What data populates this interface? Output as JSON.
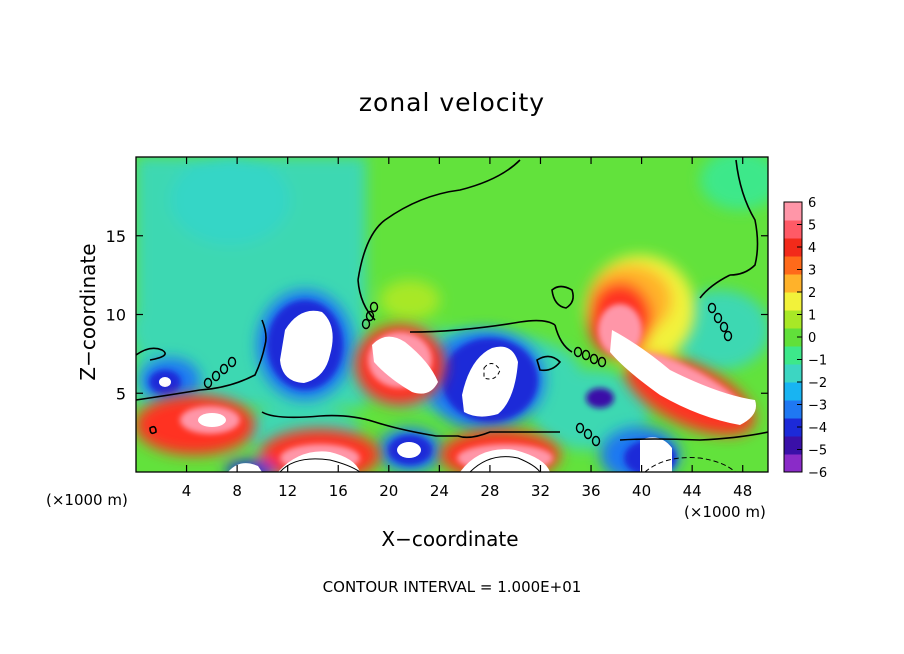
{
  "chart_data": {
    "type": "heatmap",
    "title": "zonal velocity",
    "xlabel": "X−coordinate",
    "ylabel": "Z−coordinate",
    "x_unit_label": "(×1000 m)",
    "x_ticks": [
      4,
      8,
      12,
      16,
      20,
      24,
      28,
      32,
      36,
      40,
      44,
      48
    ],
    "y_ticks": [
      5,
      10,
      15
    ],
    "xlim": [
      0,
      50
    ],
    "ylim": [
      0,
      20
    ],
    "colorbar": {
      "ticks": [
        6,
        5,
        4,
        3,
        2,
        1,
        0,
        -1,
        -2,
        -3,
        -4,
        -5,
        -6
      ],
      "labels": [
        "6",
        "5",
        "4",
        "3",
        "2",
        "1",
        "0",
        "−1",
        "−2",
        "−3",
        "−4",
        "−5",
        "−6"
      ],
      "range": [
        -6,
        6
      ],
      "colors": [
        "#8a2bc8",
        "#3a10a8",
        "#1c2ad8",
        "#1f78f2",
        "#18b4f2",
        "#3cd6c2",
        "#3de88a",
        "#61e03a",
        "#a8e826",
        "#f2f23a",
        "#ffb22a",
        "#ff6a1a",
        "#f22a1a",
        "#ff5a66",
        "#ff96a8"
      ]
    },
    "features": [
      {
        "kind": "positive",
        "x": 8,
        "y": 3.5,
        "peak": "6+"
      },
      {
        "kind": "positive",
        "x": 14,
        "y": 1.5,
        "peak": "6+"
      },
      {
        "kind": "negative",
        "x": 14,
        "y": 8,
        "peak": "-6-"
      },
      {
        "kind": "positive",
        "x": 20,
        "y": 7,
        "peak": "6+"
      },
      {
        "kind": "negative",
        "x": 22,
        "y": 2,
        "peak": "-6-"
      },
      {
        "kind": "negative",
        "x": 29,
        "y": 6.5,
        "peak": "-6-"
      },
      {
        "kind": "positive",
        "x": 28,
        "y": 1.5,
        "peak": "6+"
      },
      {
        "kind": "positive",
        "x": 44,
        "y": 6,
        "peak": "6+"
      },
      {
        "kind": "negative",
        "x": 43,
        "y": 1,
        "peak": "-6-"
      }
    ],
    "contour_interval": "CONTOUR INTERVAL = 1.000E+01",
    "grid": false,
    "legend": "right colorbar"
  }
}
